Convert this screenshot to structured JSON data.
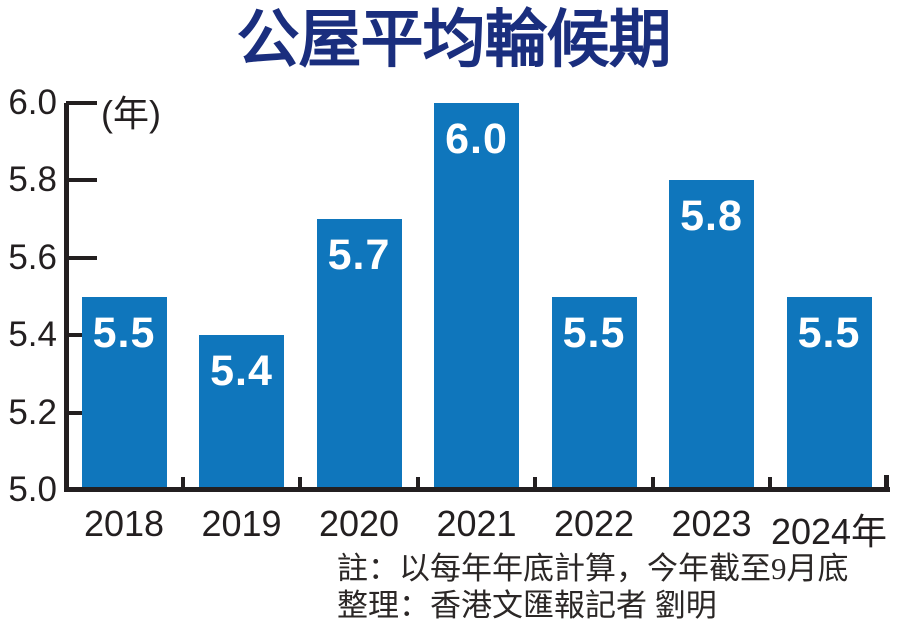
{
  "chart_data": {
    "type": "bar",
    "title": "公屋平均輪候期",
    "unit_label": "(年)",
    "xlabel": "",
    "ylabel": "年",
    "categories": [
      "2018",
      "2019",
      "2020",
      "2021",
      "2022",
      "2023",
      "2024年"
    ],
    "values": [
      5.5,
      5.4,
      5.7,
      6.0,
      5.5,
      5.8,
      5.5
    ],
    "value_labels": [
      "5.5",
      "5.4",
      "5.7",
      "6.0",
      "5.5",
      "5.8",
      "5.5"
    ],
    "y_ticks": [
      "6.0",
      "5.8",
      "5.6",
      "5.4",
      "5.2",
      "5.0"
    ],
    "ylim": [
      5.0,
      6.0
    ],
    "grid": false,
    "legend": false,
    "bar_color": "#0f76bc",
    "title_color": "#1a2e7e",
    "axis_color": "#231f20",
    "value_label_color": "#ffffff"
  },
  "footnotes": {
    "note": "註：以每年年底計算，今年截至9月底",
    "credit": "整理：香港文匯報記者 劉明"
  }
}
